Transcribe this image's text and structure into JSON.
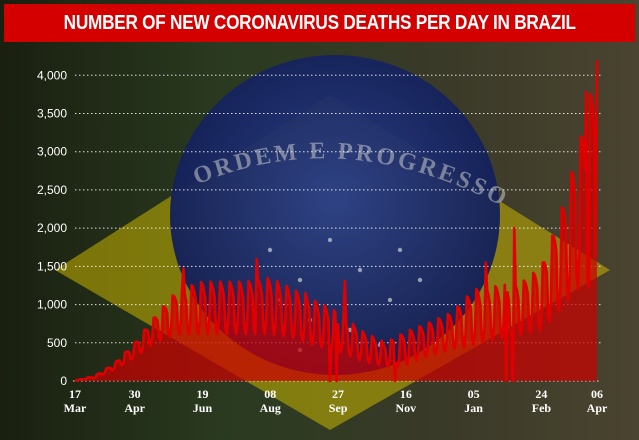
{
  "chart_data": {
    "type": "area",
    "title": "NUMBER OF NEW CORONAVIRUS DEATHS PER DAY IN BRAZIL",
    "xlabel": "",
    "ylabel": "",
    "ylim": [
      0,
      4200
    ],
    "yticks": [
      0,
      500,
      1000,
      1500,
      2000,
      2500,
      3000,
      3500,
      4000
    ],
    "ytick_labels": [
      "0",
      "500",
      "1,000",
      "1,500",
      "2,000",
      "2,500",
      "3,000",
      "3,500",
      "4,000"
    ],
    "xticks": [
      {
        "date": "2020-03-17",
        "day": "17",
        "month": "Mar"
      },
      {
        "date": "2020-04-30",
        "day": "30",
        "month": "Apr"
      },
      {
        "date": "2020-06-19",
        "day": "19",
        "month": "Jun"
      },
      {
        "date": "2020-08-08",
        "day": "08",
        "month": "Aug"
      },
      {
        "date": "2020-09-27",
        "day": "27",
        "month": "Sep"
      },
      {
        "date": "2020-11-16",
        "day": "16",
        "month": "Nov"
      },
      {
        "date": "2021-01-05",
        "day": "05",
        "month": "Jan"
      },
      {
        "date": "2021-02-24",
        "day": "24",
        "month": "Feb"
      },
      {
        "date": "2021-04-06",
        "day": "06",
        "month": "Apr"
      }
    ],
    "x_start": "2020-03-17",
    "x_end": "2021-04-06",
    "grid": "horizontal-dotted",
    "colors": {
      "banner": "#d40000",
      "line": "#e00000",
      "fill": "#cc0000",
      "grid": "#ffffff"
    },
    "weekly_profile": [
      {
        "date": "2020-03-17",
        "low": 2,
        "high": 4
      },
      {
        "date": "2020-04-01",
        "low": 40,
        "high": 70
      },
      {
        "date": "2020-04-15",
        "low": 150,
        "high": 230
      },
      {
        "date": "2020-04-30",
        "low": 300,
        "high": 500
      },
      {
        "date": "2020-05-15",
        "low": 500,
        "high": 850
      },
      {
        "date": "2020-06-01",
        "low": 600,
        "high": 1200
      },
      {
        "date": "2020-06-19",
        "low": 600,
        "high": 1300
      },
      {
        "date": "2020-07-05",
        "low": 600,
        "high": 1300
      },
      {
        "date": "2020-07-20",
        "low": 600,
        "high": 1300
      },
      {
        "date": "2020-08-08",
        "low": 600,
        "high": 1350
      },
      {
        "date": "2020-08-25",
        "low": 550,
        "high": 1200
      },
      {
        "date": "2020-09-10",
        "low": 450,
        "high": 1050
      },
      {
        "date": "2020-09-27",
        "low": 380,
        "high": 900
      },
      {
        "date": "2020-10-15",
        "low": 250,
        "high": 650
      },
      {
        "date": "2020-11-01",
        "low": 180,
        "high": 500
      },
      {
        "date": "2020-11-16",
        "low": 200,
        "high": 650
      },
      {
        "date": "2020-12-01",
        "low": 300,
        "high": 750
      },
      {
        "date": "2020-12-20",
        "low": 400,
        "high": 900
      },
      {
        "date": "2021-01-05",
        "low": 450,
        "high": 1200
      },
      {
        "date": "2021-01-25",
        "low": 550,
        "high": 1250
      },
      {
        "date": "2021-02-10",
        "low": 600,
        "high": 1300
      },
      {
        "date": "2021-02-24",
        "low": 650,
        "high": 1500
      },
      {
        "date": "2021-03-10",
        "low": 900,
        "high": 2200
      },
      {
        "date": "2021-03-25",
        "low": 1200,
        "high": 3200
      },
      {
        "date": "2021-04-06",
        "low": 1300,
        "high": 4150
      }
    ],
    "spikes": [
      {
        "date": "2020-06-05",
        "value": 1473
      },
      {
        "date": "2020-07-29",
        "value": 1595
      },
      {
        "date": "2020-09-03",
        "value": 1150
      },
      {
        "date": "2020-09-21",
        "value": 1720
      },
      {
        "date": "2020-10-02",
        "value": 1310
      },
      {
        "date": "2021-01-14",
        "value": 1550
      },
      {
        "date": "2021-02-04",
        "value": 2000
      },
      {
        "date": "2021-03-29",
        "value": 3780
      },
      {
        "date": "2021-04-06",
        "value": 4195
      }
    ],
    "dips": [
      {
        "date": "2020-09-21",
        "value": 0
      },
      {
        "date": "2020-09-26",
        "value": 0
      },
      {
        "date": "2020-11-08",
        "value": 0
      },
      {
        "date": "2021-01-29",
        "value": 0
      },
      {
        "date": "2021-02-03",
        "value": 0
      },
      {
        "date": "2021-03-31",
        "value": 1230
      }
    ]
  },
  "background": {
    "motto": "ORDEM E PROGRESSO",
    "flag_colors": {
      "green": "#0a6b2a",
      "yellow": "#c9b400",
      "blue": "#15226b"
    }
  }
}
